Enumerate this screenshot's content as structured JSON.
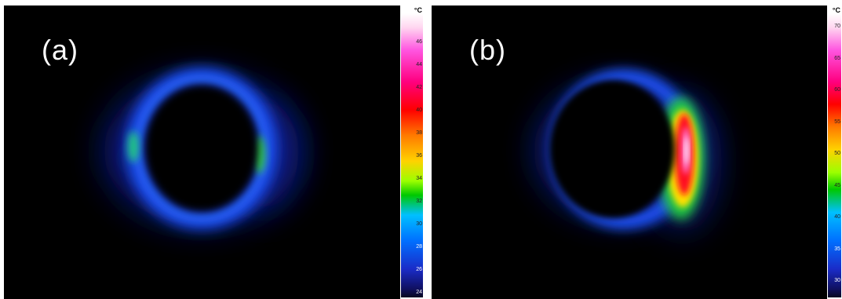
{
  "panels": [
    {
      "label": "(a)",
      "scale": {
        "unit": "°C",
        "ticks": [
          "46",
          "44",
          "42",
          "40",
          "38",
          "36",
          "34",
          "32",
          "30",
          "28",
          "26",
          "24"
        ]
      }
    },
    {
      "label": "(b)",
      "scale": {
        "unit": "°C",
        "ticks": [
          "70",
          "65",
          "60",
          "55",
          "50",
          "45",
          "40",
          "35",
          "30"
        ]
      }
    }
  ]
}
